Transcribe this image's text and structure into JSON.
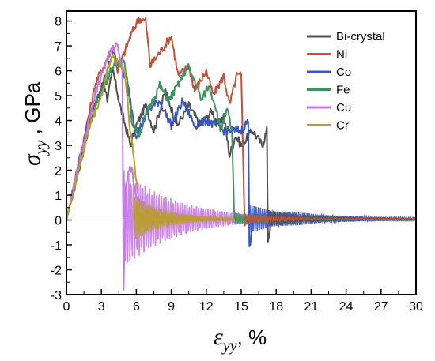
{
  "chart_data": {
    "type": "line",
    "xlabel": {
      "symbol": "ε",
      "sub": "yy",
      "unit": ", %"
    },
    "ylabel": {
      "symbol": "σ",
      "sub": "yy",
      "unit": " , GPa"
    },
    "xlim": [
      0,
      30
    ],
    "ylim": [
      -3,
      8.4
    ],
    "x_ticks": [
      0,
      3,
      6,
      9,
      12,
      15,
      18,
      21,
      24,
      27,
      30
    ],
    "y_ticks": [
      -3,
      -2,
      -1,
      0,
      1,
      2,
      3,
      4,
      5,
      6,
      7,
      8
    ],
    "legend_position": "top-right",
    "series": [
      {
        "name": "Bi-crystal",
        "color": "#505050",
        "points": [
          [
            0,
            0
          ],
          [
            2.2,
            4.2
          ],
          [
            3.2,
            5.6
          ],
          [
            3.5,
            4.9
          ],
          [
            4.0,
            6.0
          ],
          [
            4.6,
            4.6
          ],
          [
            5.5,
            3.0
          ],
          [
            6.0,
            3.8
          ],
          [
            6.8,
            4.6
          ],
          [
            7.5,
            3.6
          ],
          [
            8.5,
            5.2
          ],
          [
            9.5,
            3.8
          ],
          [
            10.5,
            4.6
          ],
          [
            11.5,
            3.8
          ],
          [
            12.5,
            4.4
          ],
          [
            13.0,
            3.8
          ],
          [
            13.5,
            4.2
          ],
          [
            14.0,
            2.6
          ],
          [
            14.5,
            3.4
          ],
          [
            15.0,
            3.0
          ],
          [
            16.0,
            3.6
          ],
          [
            16.8,
            3.0
          ],
          [
            17.2,
            3.6
          ],
          [
            17.3,
            -0.8
          ],
          [
            17.6,
            0.1
          ],
          [
            20,
            0
          ],
          [
            25,
            0
          ],
          [
            30,
            0
          ]
        ]
      },
      {
        "name": "Ni",
        "color": "#c0523b",
        "points": [
          [
            0,
            0
          ],
          [
            2.5,
            5.5
          ],
          [
            4.0,
            7.0
          ],
          [
            4.4,
            6.0
          ],
          [
            5.5,
            7.4
          ],
          [
            6.2,
            8.1
          ],
          [
            6.8,
            8.0
          ],
          [
            7.2,
            6.2
          ],
          [
            8.4,
            7.0
          ],
          [
            9.0,
            7.4
          ],
          [
            9.6,
            5.8
          ],
          [
            10.5,
            6.2
          ],
          [
            11.0,
            5.2
          ],
          [
            12.0,
            6.0
          ],
          [
            12.6,
            5.0
          ],
          [
            13.5,
            5.8
          ],
          [
            14.0,
            4.6
          ],
          [
            14.6,
            5.8
          ],
          [
            15.0,
            5.8
          ],
          [
            15.3,
            -0.2
          ],
          [
            16,
            0.05
          ],
          [
            20,
            0
          ],
          [
            25,
            0
          ],
          [
            30,
            0
          ]
        ]
      },
      {
        "name": "Co",
        "color": "#3a55c8",
        "points": [
          [
            0,
            0
          ],
          [
            2.0,
            4.2
          ],
          [
            3.0,
            5.2
          ],
          [
            4.0,
            6.8
          ],
          [
            4.6,
            6.2
          ],
          [
            5.2,
            5.6
          ],
          [
            6.0,
            3.4
          ],
          [
            7.0,
            4.4
          ],
          [
            8.0,
            4.8
          ],
          [
            9.0,
            3.8
          ],
          [
            10.0,
            4.8
          ],
          [
            11.0,
            3.8
          ],
          [
            12.0,
            4.0
          ],
          [
            13.5,
            3.6
          ],
          [
            14.5,
            3.6
          ],
          [
            15.0,
            3.6
          ],
          [
            15.6,
            4.0
          ],
          [
            15.7,
            -1.2
          ],
          [
            16,
            0.2
          ],
          [
            18,
            0.1
          ],
          [
            22,
            0.05
          ],
          [
            26,
            0.02
          ],
          [
            30,
            0
          ]
        ]
      },
      {
        "name": "Fe",
        "color": "#3d9360",
        "points": [
          [
            0,
            0
          ],
          [
            2.2,
            4.3
          ],
          [
            3.4,
            5.6
          ],
          [
            4.0,
            6.2
          ],
          [
            5.0,
            6.4
          ],
          [
            5.6,
            4.0
          ],
          [
            6.2,
            3.4
          ],
          [
            7.0,
            4.4
          ],
          [
            8.0,
            5.4
          ],
          [
            8.8,
            4.8
          ],
          [
            9.8,
            5.6
          ],
          [
            10.4,
            6.2
          ],
          [
            11.0,
            5.6
          ],
          [
            11.6,
            4.8
          ],
          [
            12.2,
            5.4
          ],
          [
            12.8,
            4.6
          ],
          [
            13.2,
            3.6
          ],
          [
            13.8,
            4.4
          ],
          [
            14.2,
            3.6
          ],
          [
            14.4,
            -0.1
          ],
          [
            15,
            0
          ],
          [
            20,
            0
          ],
          [
            30,
            0
          ]
        ]
      },
      {
        "name": "Cu",
        "color": "#c678e8",
        "points": [
          [
            0,
            0
          ],
          [
            2.4,
            5.0
          ],
          [
            3.6,
            6.6
          ],
          [
            4.4,
            7.1
          ],
          [
            4.8,
            6.0
          ],
          [
            4.9,
            -2.9
          ],
          [
            5.1,
            1.5
          ],
          [
            5.6,
            2.2
          ],
          [
            6.0,
            0.8
          ],
          [
            7.0,
            0.4
          ],
          [
            10,
            0.1
          ],
          [
            14,
            0
          ],
          [
            20,
            0
          ],
          [
            30,
            0
          ]
        ]
      },
      {
        "name": "Cr",
        "color": "#b8a020",
        "points": [
          [
            0,
            0
          ],
          [
            2.0,
            3.8
          ],
          [
            3.0,
            5.0
          ],
          [
            3.8,
            6.5
          ],
          [
            4.4,
            6.4
          ],
          [
            5.0,
            6.0
          ],
          [
            5.4,
            4.0
          ],
          [
            5.8,
            2.4
          ],
          [
            6.2,
            0.8
          ],
          [
            7.0,
            0.2
          ],
          [
            10,
            0
          ],
          [
            20,
            0
          ],
          [
            30,
            0
          ]
        ]
      }
    ]
  }
}
